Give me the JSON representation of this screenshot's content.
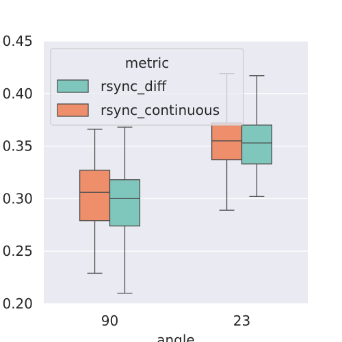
{
  "chart_data": {
    "type": "box",
    "title": "",
    "xlabel": "angle",
    "ylabel": "",
    "ylim": [
      0.2,
      0.45
    ],
    "yticks": [
      0.2,
      0.25,
      0.3,
      0.35,
      0.4,
      0.45
    ],
    "ytick_labels": [
      "0.20",
      "0.25",
      "0.30",
      "0.35",
      "0.40",
      "0.45"
    ],
    "categories": [
      "90",
      "23"
    ],
    "grid": true,
    "legend": {
      "title": "metric",
      "placement": "upper-left"
    },
    "series": [
      {
        "name": "rsync_continuous",
        "color": "#ee8e6a",
        "boxes": [
          {
            "category": "90",
            "whisker_low": 0.229,
            "q1": 0.279,
            "median": 0.306,
            "q3": 0.327,
            "whisker_high": 0.366
          },
          {
            "category": "23",
            "whisker_low": 0.289,
            "q1": 0.337,
            "median": 0.355,
            "q3": 0.372,
            "whisker_high": 0.419
          }
        ]
      },
      {
        "name": "rsync_diff",
        "color": "#7fc7bd",
        "boxes": [
          {
            "category": "90",
            "whisker_low": 0.21,
            "q1": 0.274,
            "median": 0.3,
            "q3": 0.318,
            "whisker_high": 0.368
          },
          {
            "category": "23",
            "whisker_low": 0.302,
            "q1": 0.333,
            "median": 0.353,
            "q3": 0.37,
            "whisker_high": 0.417
          }
        ]
      }
    ],
    "legend_order": [
      "rsync_diff",
      "rsync_continuous"
    ],
    "style": {
      "background": "#eaeaf2",
      "grid_color": "#ffffff",
      "line_color": "#4d4d4d"
    }
  }
}
